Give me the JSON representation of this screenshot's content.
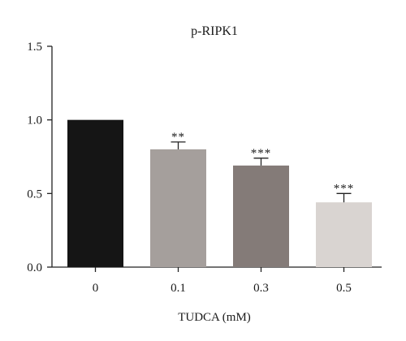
{
  "chart_data": {
    "type": "bar",
    "title": "p-RIPK1",
    "xlabel": "TUDCA (mM)",
    "ylabel": "",
    "categories": [
      "0",
      "0.1",
      "0.3",
      "0.5"
    ],
    "values": [
      1.0,
      0.8,
      0.69,
      0.44
    ],
    "errors": [
      0,
      0.05,
      0.05,
      0.06
    ],
    "significance": [
      "",
      "**",
      "***",
      "***"
    ],
    "ylim": [
      0,
      1.5
    ],
    "yticks": [
      0.0,
      0.5,
      1.0,
      1.5
    ],
    "ytick_labels": [
      "0.0",
      "0.5",
      "1.0",
      "1.5"
    ],
    "bar_colors": [
      "#151515",
      "#a59f9c",
      "#847b78",
      "#d9d4d1"
    ],
    "grid": false,
    "legend": "none"
  }
}
